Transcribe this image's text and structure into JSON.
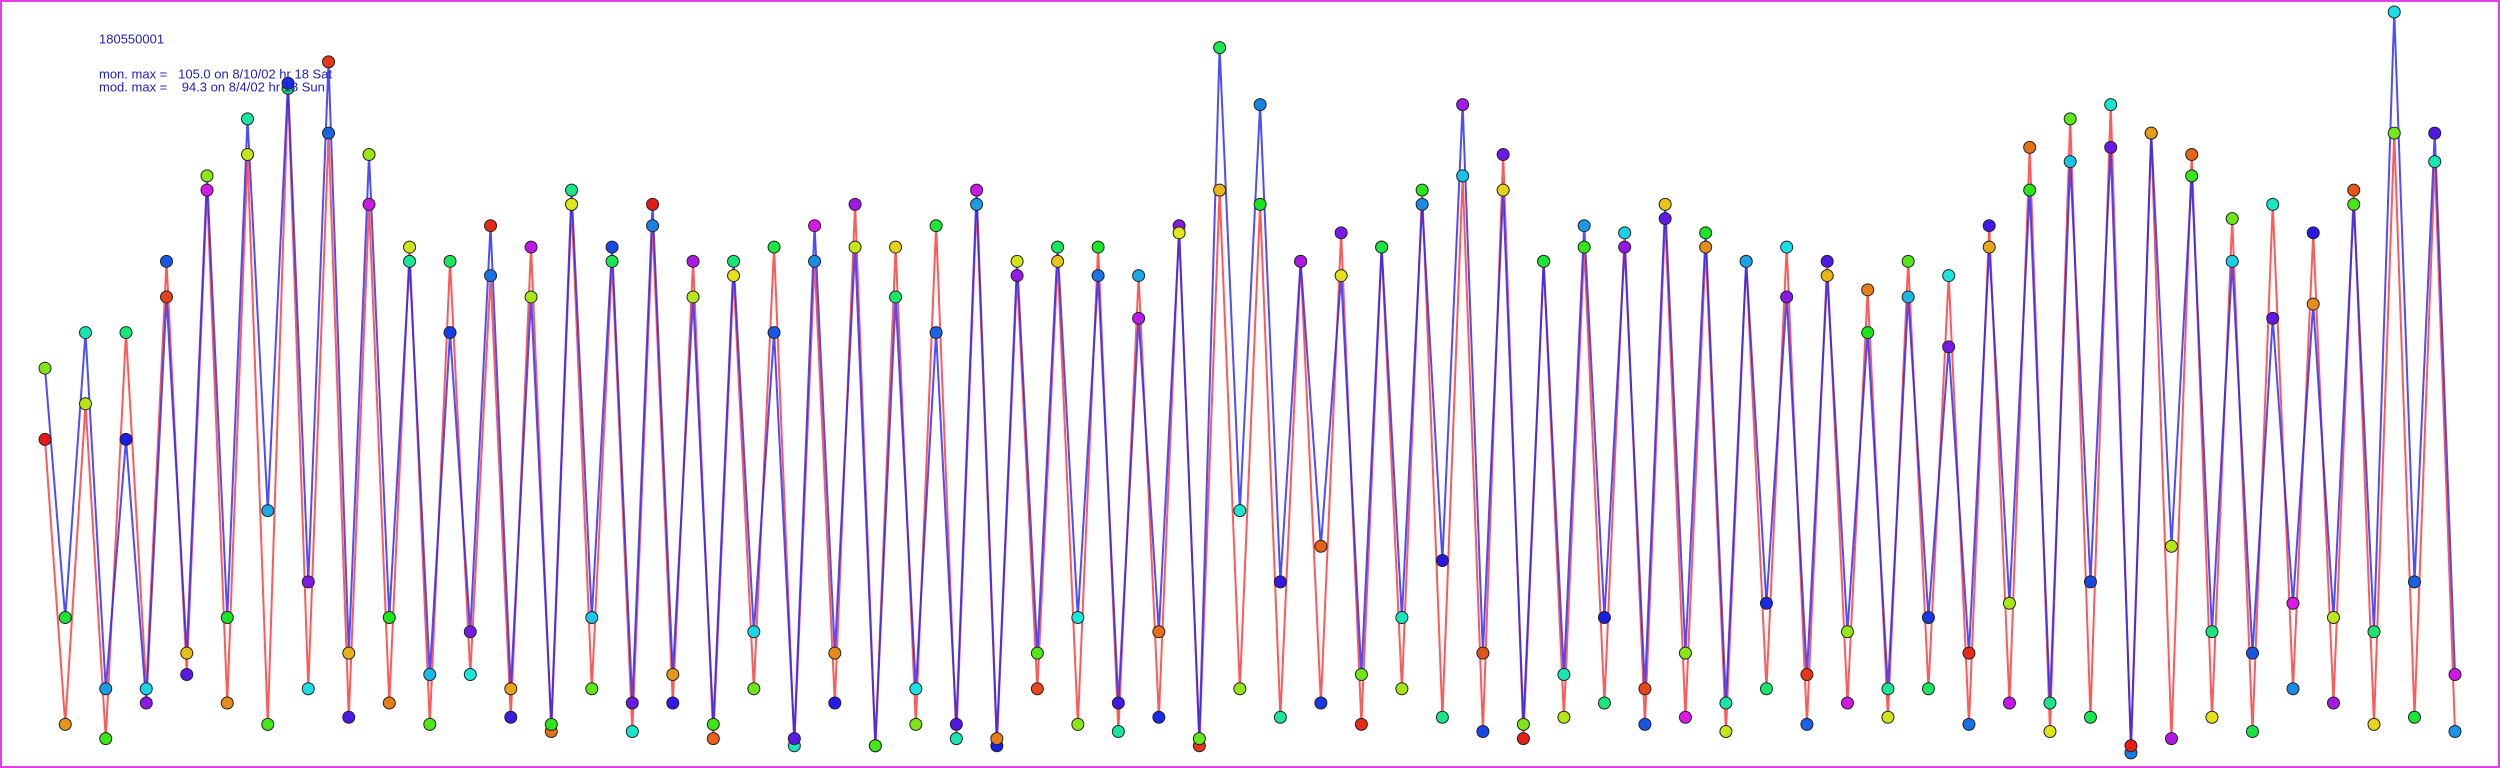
{
  "chart_data": {
    "type": "line",
    "title": "180550001",
    "annotations": [
      "mon. max =   105.0 on 8/10/02 hr 18 Sat",
      "mod. max =    94.3 on 8/4/02 hr 18 Sun"
    ],
    "ylim": [
      0,
      105
    ],
    "series": [
      {
        "color": "#ff3030",
        "values": [
          45,
          5,
          50,
          3,
          60,
          10,
          70,
          12,
          80,
          8,
          85,
          5,
          94.3,
          10,
          88,
          6,
          78,
          8,
          72,
          5,
          70,
          12,
          68,
          6,
          72,
          4,
          78,
          10,
          70,
          4,
          75,
          8,
          70,
          3,
          68,
          10,
          72,
          2,
          70,
          8,
          78,
          2,
          72,
          5,
          75,
          3,
          78,
          2,
          68,
          10,
          70,
          5,
          72,
          4,
          68,
          6,
          75,
          2,
          80,
          10,
          78,
          6,
          70,
          8,
          74,
          5,
          72,
          10,
          80,
          6,
          82,
          4,
          85,
          3,
          70,
          6,
          72,
          8,
          74,
          5,
          76,
          6,
          72,
          4,
          70,
          10,
          72,
          5,
          70,
          8,
          66,
          6,
          70,
          10,
          68,
          5,
          75,
          8,
          86,
          4,
          90,
          6,
          92,
          1,
          88,
          3,
          85,
          6,
          76,
          4,
          78,
          10,
          74,
          8,
          80,
          5,
          88,
          6,
          84,
          4
        ]
      },
      {
        "color": "#2020ff",
        "values": [
          55,
          20,
          60,
          10,
          45,
          8,
          65,
          15,
          82,
          20,
          90,
          35,
          95,
          25,
          98,
          15,
          85,
          20,
          70,
          12,
          60,
          18,
          75,
          10,
          65,
          5,
          80,
          20,
          72,
          8,
          78,
          12,
          65,
          5,
          70,
          18,
          60,
          3,
          75,
          15,
          72,
          2,
          65,
          10,
          60,
          5,
          80,
          3,
          70,
          15,
          72,
          20,
          68,
          8,
          62,
          18,
          74,
          3,
          100,
          35,
          92,
          25,
          70,
          30,
          68,
          12,
          72,
          20,
          78,
          28,
          92,
          15,
          80,
          5,
          70,
          12,
          75,
          20,
          72,
          10,
          78,
          15,
          74,
          8,
          70,
          22,
          65,
          12,
          68,
          18,
          60,
          10,
          65,
          20,
          58,
          15,
          72,
          22,
          80,
          8,
          84,
          25,
          86,
          2,
          88,
          30,
          82,
          18,
          70,
          15,
          62,
          22,
          64,
          20,
          78,
          18,
          105,
          25,
          88,
          12
        ]
      }
    ]
  }
}
